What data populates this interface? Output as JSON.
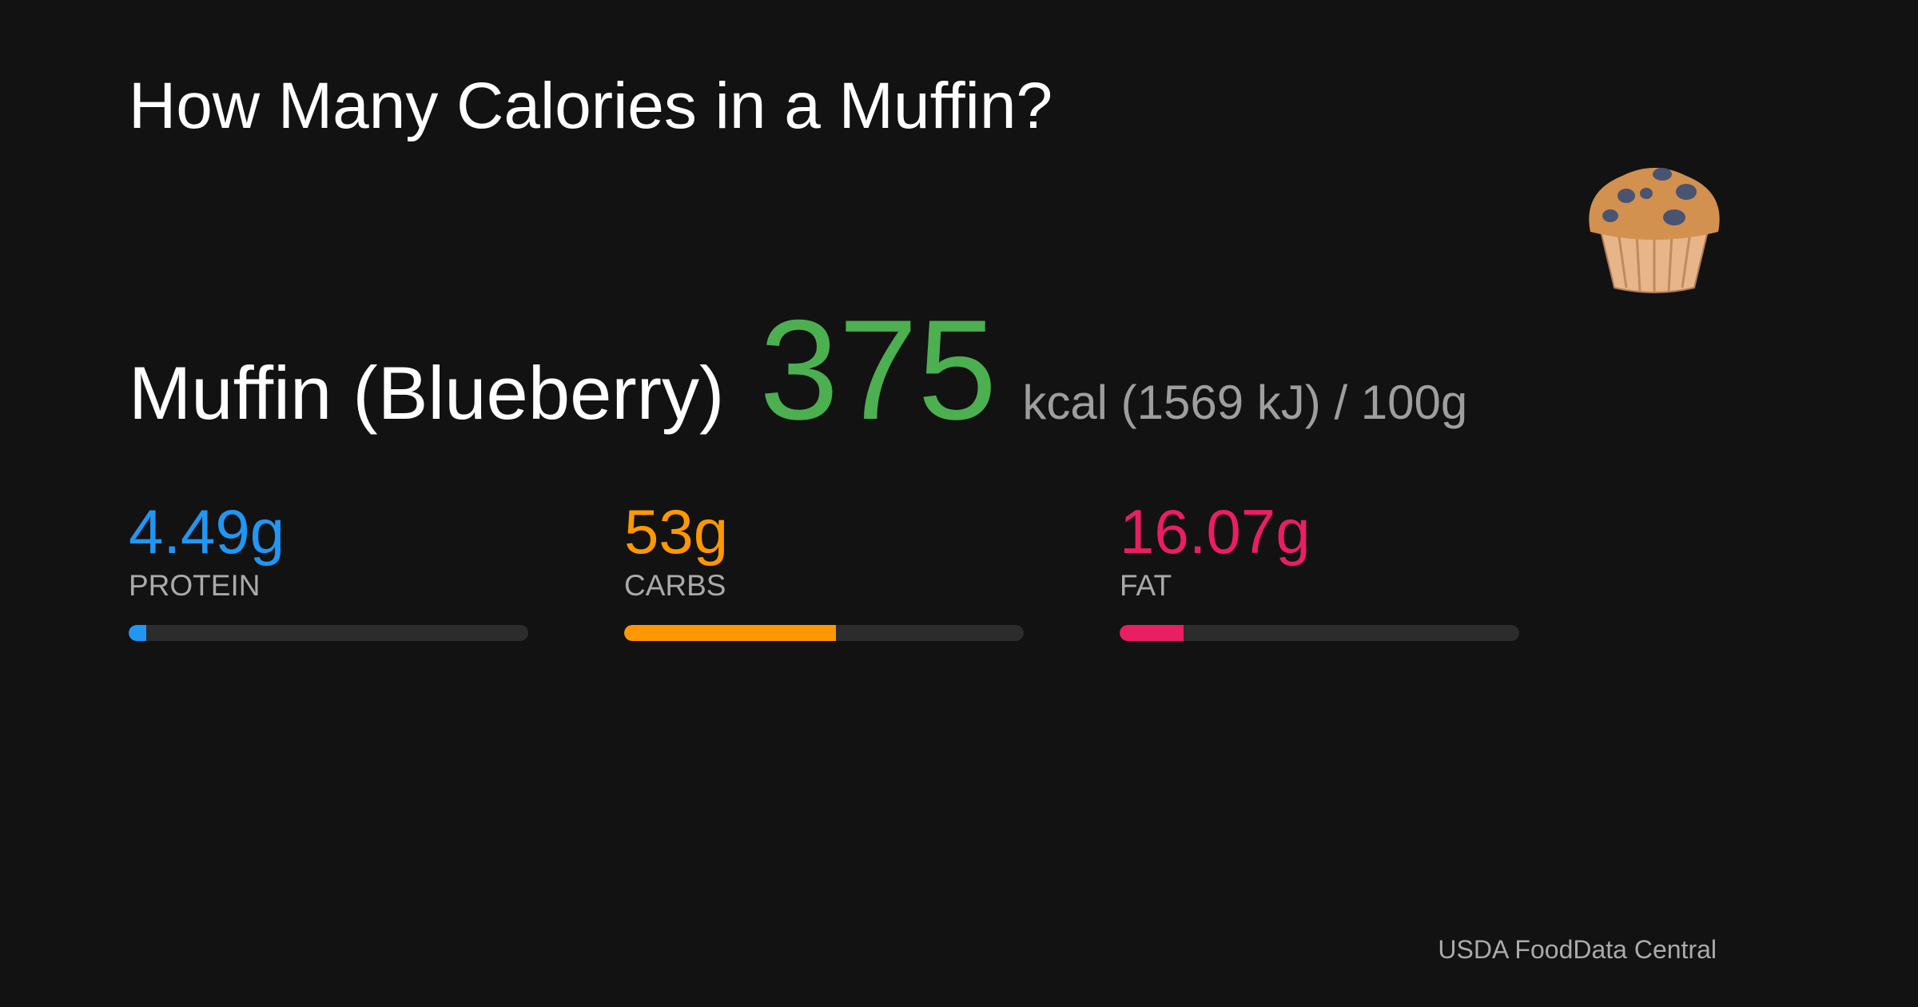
{
  "header": {
    "title": "How Many Calories in a Muffin?"
  },
  "food": {
    "name": "Muffin (Blueberry)",
    "kcal": 375,
    "unit_text": "kcal (1569 kJ) / 100g",
    "kcal_color": "#4caf50"
  },
  "macros": {
    "xlim": [
      0,
      100
    ],
    "items": [
      {
        "value": 4.49,
        "value_label": "4.49g",
        "name": "PROTEIN",
        "color": "#2196f3"
      },
      {
        "value": 53,
        "value_label": "53g",
        "name": "CARBS",
        "color": "#ff9800"
      },
      {
        "value": 16.07,
        "value_label": "16.07g",
        "name": "FAT",
        "color": "#e91e63"
      }
    ]
  },
  "footer": {
    "source": "USDA FoodData Central"
  }
}
